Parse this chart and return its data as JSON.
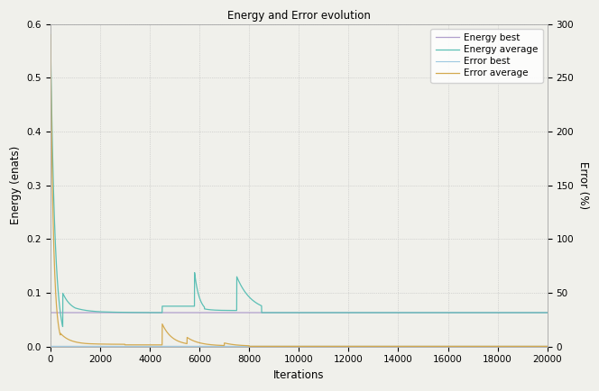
{
  "title": "Energy and Error evolution",
  "xlabel": "Iterations",
  "ylabel_left": "Energy (enats)",
  "ylabel_right": "Error (%)",
  "xlim": [
    0,
    20000
  ],
  "ylim_left": [
    0,
    0.6
  ],
  "ylim_right": [
    0,
    300
  ],
  "legend_labels": [
    "Energy best",
    "Energy average",
    "Error best",
    "Error average"
  ],
  "colors": {
    "energy_best": "#b09fcc",
    "energy_average": "#5bbfb5",
    "error_best": "#9ec8e0",
    "error_average": "#d4aa50"
  },
  "background_color": "#f0f0eb",
  "grid_color": "#bbbbbb",
  "figsize": [
    6.64,
    4.34
  ],
  "dpi": 100
}
